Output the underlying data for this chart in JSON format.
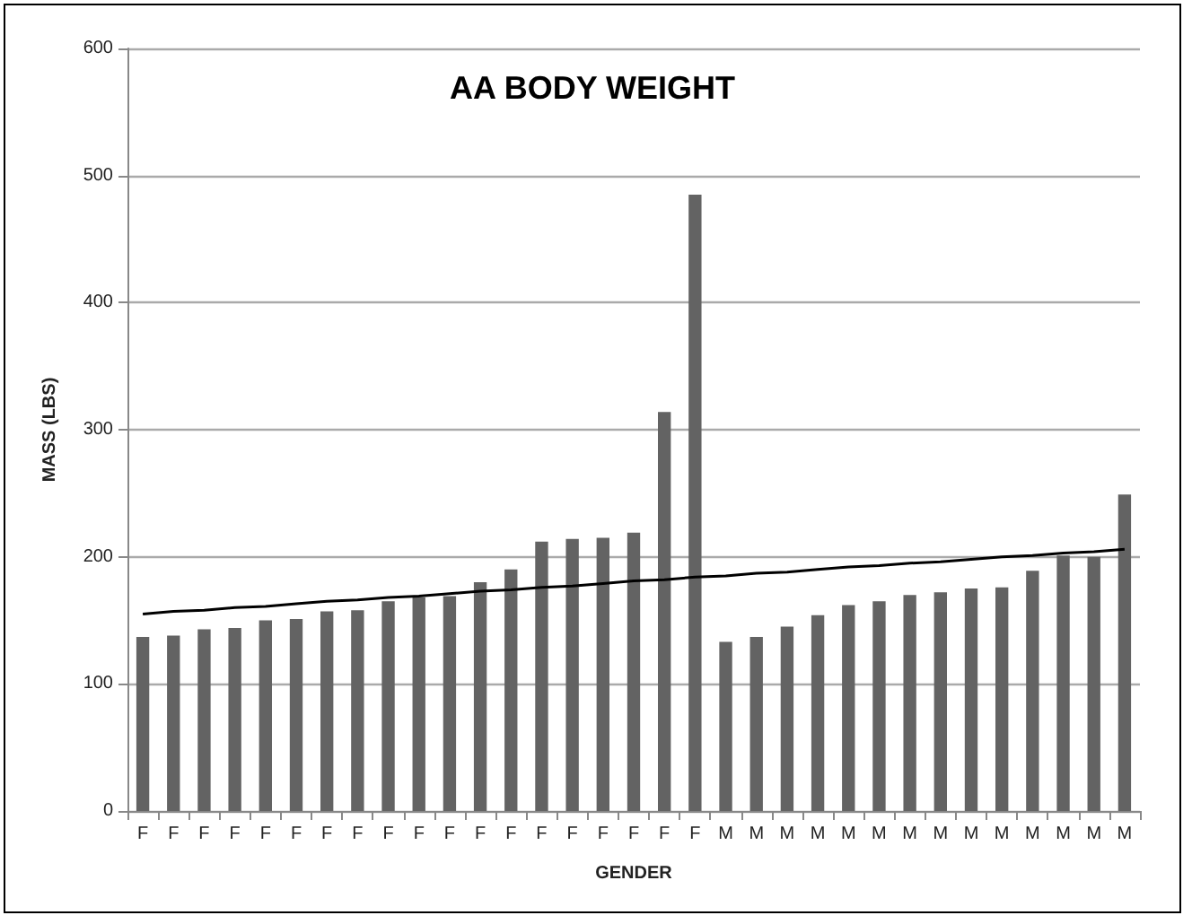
{
  "chart_data": {
    "type": "bar",
    "title": "AA BODY WEIGHT",
    "xlabel": "GENDER",
    "ylabel": "MASS (LBS)",
    "categories": [
      "F",
      "F",
      "F",
      "F",
      "F",
      "F",
      "F",
      "F",
      "F",
      "F",
      "F",
      "F",
      "F",
      "F",
      "F",
      "F",
      "F",
      "F",
      "F",
      "M",
      "M",
      "M",
      "M",
      "M",
      "M",
      "M",
      "M",
      "M",
      "M",
      "M",
      "M",
      "M",
      "M"
    ],
    "series": [
      {
        "color": "#636363",
        "values": [
          137,
          138,
          143,
          144,
          150,
          151,
          157,
          158,
          165,
          168,
          169,
          180,
          190,
          212,
          214,
          215,
          219,
          314,
          485,
          133,
          137,
          145,
          154,
          162,
          165,
          170,
          172,
          175,
          176,
          189,
          201,
          200,
          249
        ]
      },
      {
        "type": "line",
        "color": "#000000",
        "values": [
          155,
          157,
          158,
          160,
          161,
          163,
          165,
          166,
          168,
          169,
          171,
          173,
          174,
          176,
          177,
          179,
          181,
          182,
          184,
          185,
          187,
          188,
          190,
          192,
          193,
          195,
          196,
          198,
          200,
          201,
          203,
          204,
          206
        ]
      }
    ],
    "ylim": [
      0,
      600
    ],
    "yticks": [
      0,
      100,
      200,
      300,
      400,
      500,
      600
    ],
    "grid": "y",
    "marker": "none",
    "line_style": "solid"
  }
}
